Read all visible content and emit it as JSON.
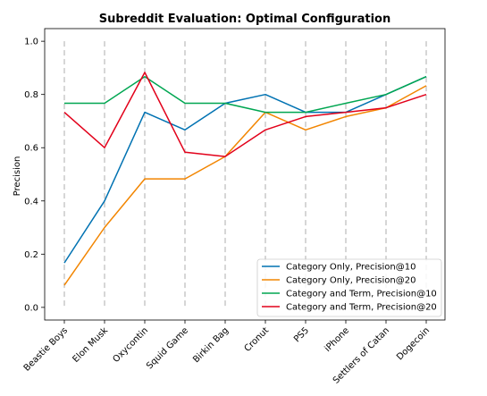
{
  "chart_data": {
    "type": "line",
    "title": "Subreddit Evaluation: Optimal Configuration",
    "xlabel": "",
    "ylabel": "Precision",
    "ylim": [
      -0.0475,
      1.0475
    ],
    "yticks": [
      "0.0",
      "0.2",
      "0.4",
      "0.6",
      "0.8",
      "1.0"
    ],
    "categories": [
      "Beastie Boys",
      "Elon Musk",
      "Oxycontin",
      "Squid Game",
      "Birkin Bag",
      "Cronut",
      "PS5",
      "iPhone",
      "Settlers of Catan",
      "Dogecoin"
    ],
    "grid": "x-dashed",
    "legend_position": "lower-right",
    "series": [
      {
        "name": "Category Only, Precision@10",
        "color": "#0072B2",
        "values": [
          0.167,
          0.4,
          0.733,
          0.667,
          0.767,
          0.8,
          0.733,
          0.733,
          0.8,
          0.867
        ]
      },
      {
        "name": "Category Only, Precision@20",
        "color": "#F28500",
        "values": [
          0.083,
          0.3,
          0.483,
          0.483,
          0.567,
          0.733,
          0.667,
          0.717,
          0.75,
          0.833
        ]
      },
      {
        "name": "Category and Term, Precision@10",
        "color": "#00A651",
        "values": [
          0.767,
          0.767,
          0.867,
          0.767,
          0.767,
          0.733,
          0.733,
          0.767,
          0.8,
          0.867
        ]
      },
      {
        "name": "Category and Term, Precision@20",
        "color": "#E2001A",
        "values": [
          0.733,
          0.6,
          0.883,
          0.583,
          0.567,
          0.667,
          0.717,
          0.733,
          0.75,
          0.8
        ]
      }
    ]
  }
}
